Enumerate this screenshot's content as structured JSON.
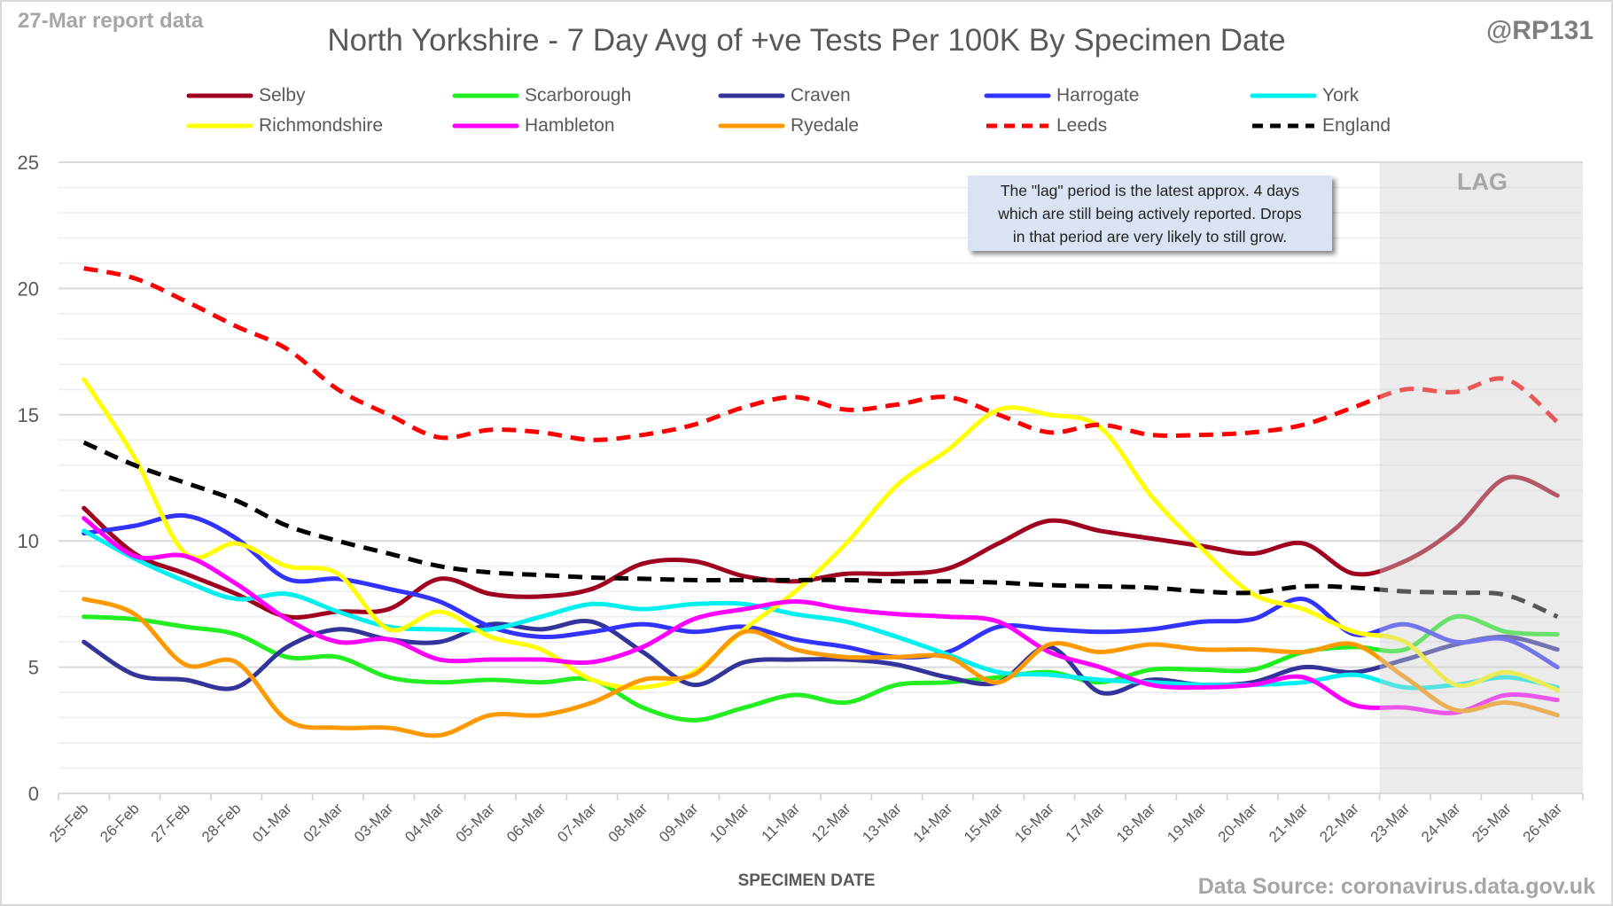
{
  "header": {
    "report_label": "27-Mar report data",
    "handle": "@RP131"
  },
  "annotation": {
    "lag_label": "LAG",
    "note_lines": [
      "The \"lag\" period is the latest approx. 4 days",
      "which are still being actively reported.  Drops",
      "in that period are very likely to still grow."
    ]
  },
  "footer": {
    "source": "Data Source: coronavirus.data.gov.uk"
  },
  "colors": {
    "Selby": "#a00020",
    "Scarborough": "#22ee22",
    "Craven": "#333399",
    "Harrogate": "#3333ff",
    "York": "#00f0f0",
    "Richmondshire": "#ffff00",
    "Hambleton": "#ff00ff",
    "Ryedale": "#ff9900",
    "Leeds": "#ff0000",
    "England": "#000000",
    "lag_shade": "#e8e8e8",
    "gridline": "#d9d9d9"
  },
  "chart_data": {
    "type": "line",
    "title": "North Yorkshire - 7 Day Avg of +ve Tests Per 100K By Specimen Date",
    "xlabel": "SPECIMEN DATE",
    "ylabel": "",
    "ylim": [
      0,
      25
    ],
    "yticks": [
      "0",
      "5",
      "10",
      "15",
      "20",
      "25"
    ],
    "grid": true,
    "legend_position": "top",
    "lag_start": "23-Mar",
    "x": [
      "25-Feb",
      "26-Feb",
      "27-Feb",
      "28-Feb",
      "01-Mar",
      "02-Mar",
      "03-Mar",
      "04-Mar",
      "05-Mar",
      "06-Mar",
      "07-Mar",
      "08-Mar",
      "09-Mar",
      "10-Mar",
      "11-Mar",
      "12-Mar",
      "13-Mar",
      "14-Mar",
      "15-Mar",
      "16-Mar",
      "17-Mar",
      "18-Mar",
      "19-Mar",
      "20-Mar",
      "21-Mar",
      "22-Mar",
      "23-Mar",
      "24-Mar",
      "25-Mar",
      "26-Mar"
    ],
    "series": [
      {
        "name": "Selby",
        "dashed": false,
        "values": [
          11.3,
          9.5,
          8.7,
          7.9,
          7.0,
          7.2,
          7.3,
          8.5,
          7.9,
          7.8,
          8.1,
          9.1,
          9.2,
          8.6,
          8.4,
          8.7,
          8.7,
          8.9,
          9.9,
          10.8,
          10.4,
          10.1,
          9.8,
          9.5,
          9.9,
          8.7,
          9.2,
          10.5,
          12.5,
          11.8
        ]
      },
      {
        "name": "Scarborough",
        "dashed": false,
        "values": [
          7.0,
          6.9,
          6.6,
          6.3,
          5.4,
          5.4,
          4.6,
          4.4,
          4.5,
          4.4,
          4.5,
          3.4,
          2.9,
          3.4,
          3.9,
          3.6,
          4.3,
          4.4,
          4.6,
          4.8,
          4.4,
          4.9,
          4.9,
          4.9,
          5.6,
          5.8,
          5.7,
          7.0,
          6.4,
          6.3
        ]
      },
      {
        "name": "Craven",
        "dashed": false,
        "values": [
          6.0,
          4.7,
          4.5,
          4.2,
          5.8,
          6.5,
          6.1,
          6.0,
          6.7,
          6.5,
          6.8,
          5.6,
          4.3,
          5.2,
          5.3,
          5.3,
          5.1,
          4.6,
          4.4,
          5.8,
          4.0,
          4.5,
          4.3,
          4.4,
          5.0,
          4.8,
          5.3,
          5.9,
          6.2,
          5.7
        ]
      },
      {
        "name": "Harrogate",
        "dashed": false,
        "values": [
          10.3,
          10.6,
          11.0,
          10.1,
          8.5,
          8.5,
          8.1,
          7.6,
          6.6,
          6.2,
          6.4,
          6.7,
          6.4,
          6.6,
          6.1,
          5.8,
          5.4,
          5.6,
          6.6,
          6.5,
          6.4,
          6.5,
          6.8,
          6.9,
          7.7,
          6.3,
          6.7,
          6.0,
          6.1,
          5.0
        ]
      },
      {
        "name": "York",
        "dashed": false,
        "values": [
          10.4,
          9.3,
          8.4,
          7.7,
          7.9,
          7.2,
          6.6,
          6.5,
          6.5,
          7.0,
          7.5,
          7.3,
          7.5,
          7.5,
          7.1,
          6.8,
          6.2,
          5.5,
          4.8,
          4.7,
          4.5,
          4.4,
          4.3,
          4.3,
          4.4,
          4.7,
          4.2,
          4.3,
          4.6,
          4.2
        ]
      },
      {
        "name": "Richmondshire",
        "dashed": false,
        "values": [
          16.4,
          13.3,
          9.5,
          9.9,
          9.0,
          8.7,
          6.5,
          7.2,
          6.2,
          5.7,
          4.5,
          4.2,
          4.8,
          6.5,
          8.0,
          9.9,
          12.2,
          13.6,
          15.2,
          15.0,
          14.5,
          11.8,
          9.7,
          7.9,
          7.3,
          6.4,
          6.0,
          4.3,
          4.8,
          4.1
        ]
      },
      {
        "name": "Hambleton",
        "dashed": false,
        "values": [
          10.9,
          9.4,
          9.4,
          8.3,
          6.9,
          6.0,
          6.1,
          5.3,
          5.3,
          5.3,
          5.2,
          5.8,
          6.9,
          7.3,
          7.6,
          7.3,
          7.1,
          7.0,
          6.8,
          5.6,
          5.0,
          4.3,
          4.2,
          4.3,
          4.6,
          3.5,
          3.4,
          3.2,
          3.9,
          3.7
        ]
      },
      {
        "name": "Ryedale",
        "dashed": false,
        "values": [
          7.7,
          7.1,
          5.1,
          5.2,
          2.9,
          2.6,
          2.6,
          2.3,
          3.1,
          3.1,
          3.6,
          4.5,
          4.7,
          6.4,
          5.7,
          5.4,
          5.4,
          5.4,
          4.4,
          5.9,
          5.6,
          5.9,
          5.7,
          5.7,
          5.6,
          5.9,
          4.6,
          3.3,
          3.6,
          3.1
        ]
      },
      {
        "name": "Leeds",
        "dashed": true,
        "values": [
          20.8,
          20.4,
          19.5,
          18.5,
          17.6,
          16.0,
          15.0,
          14.1,
          14.4,
          14.3,
          14.0,
          14.2,
          14.6,
          15.3,
          15.7,
          15.2,
          15.4,
          15.7,
          15.0,
          14.3,
          14.6,
          14.2,
          14.2,
          14.3,
          14.6,
          15.3,
          16.0,
          15.9,
          16.4,
          14.7
        ]
      },
      {
        "name": "England",
        "dashed": true,
        "values": [
          13.9,
          13.0,
          12.3,
          11.6,
          10.6,
          10.0,
          9.5,
          9.0,
          8.75,
          8.65,
          8.55,
          8.5,
          8.45,
          8.45,
          8.45,
          8.45,
          8.4,
          8.4,
          8.35,
          8.25,
          8.2,
          8.15,
          8.0,
          7.95,
          8.2,
          8.15,
          8.0,
          7.95,
          7.85,
          7.0
        ]
      }
    ]
  }
}
